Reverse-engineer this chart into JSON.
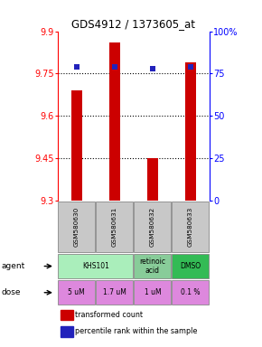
{
  "title": "GDS4912 / 1373605_at",
  "samples": [
    "GSM580630",
    "GSM580631",
    "GSM580632",
    "GSM580633"
  ],
  "bar_values": [
    9.69,
    9.86,
    9.45,
    9.79
  ],
  "percentile_values": [
    79,
    79,
    78,
    79
  ],
  "ylim_left": [
    9.3,
    9.9
  ],
  "ylim_right": [
    0,
    100
  ],
  "yticks_left": [
    9.3,
    9.45,
    9.6,
    9.75,
    9.9
  ],
  "yticks_right": [
    0,
    25,
    50,
    75,
    100
  ],
  "ytick_labels_left": [
    "9.3",
    "9.45",
    "9.6",
    "9.75",
    "9.9"
  ],
  "ytick_labels_right": [
    "0",
    "25",
    "50",
    "75",
    "100%"
  ],
  "hlines": [
    9.45,
    9.6,
    9.75
  ],
  "bar_color": "#cc0000",
  "dot_color": "#2222bb",
  "bar_bottom": 9.3,
  "dose_row": [
    "5 uM",
    "1.7 uM",
    "1 uM",
    "0.1 %"
  ],
  "dose_color": "#dd88dd",
  "sample_bg_color": "#c8c8c8",
  "legend_bar_label": "transformed count",
  "legend_dot_label": "percentile rank within the sample",
  "agent_spans": [
    {
      "label": "KHS101",
      "start": 0,
      "end": 1,
      "color": "#aaeebb"
    },
    {
      "label": "retinoic\nacid",
      "start": 2,
      "end": 2,
      "color": "#88cc99"
    },
    {
      "label": "DMSO",
      "start": 3,
      "end": 3,
      "color": "#33bb55"
    }
  ]
}
